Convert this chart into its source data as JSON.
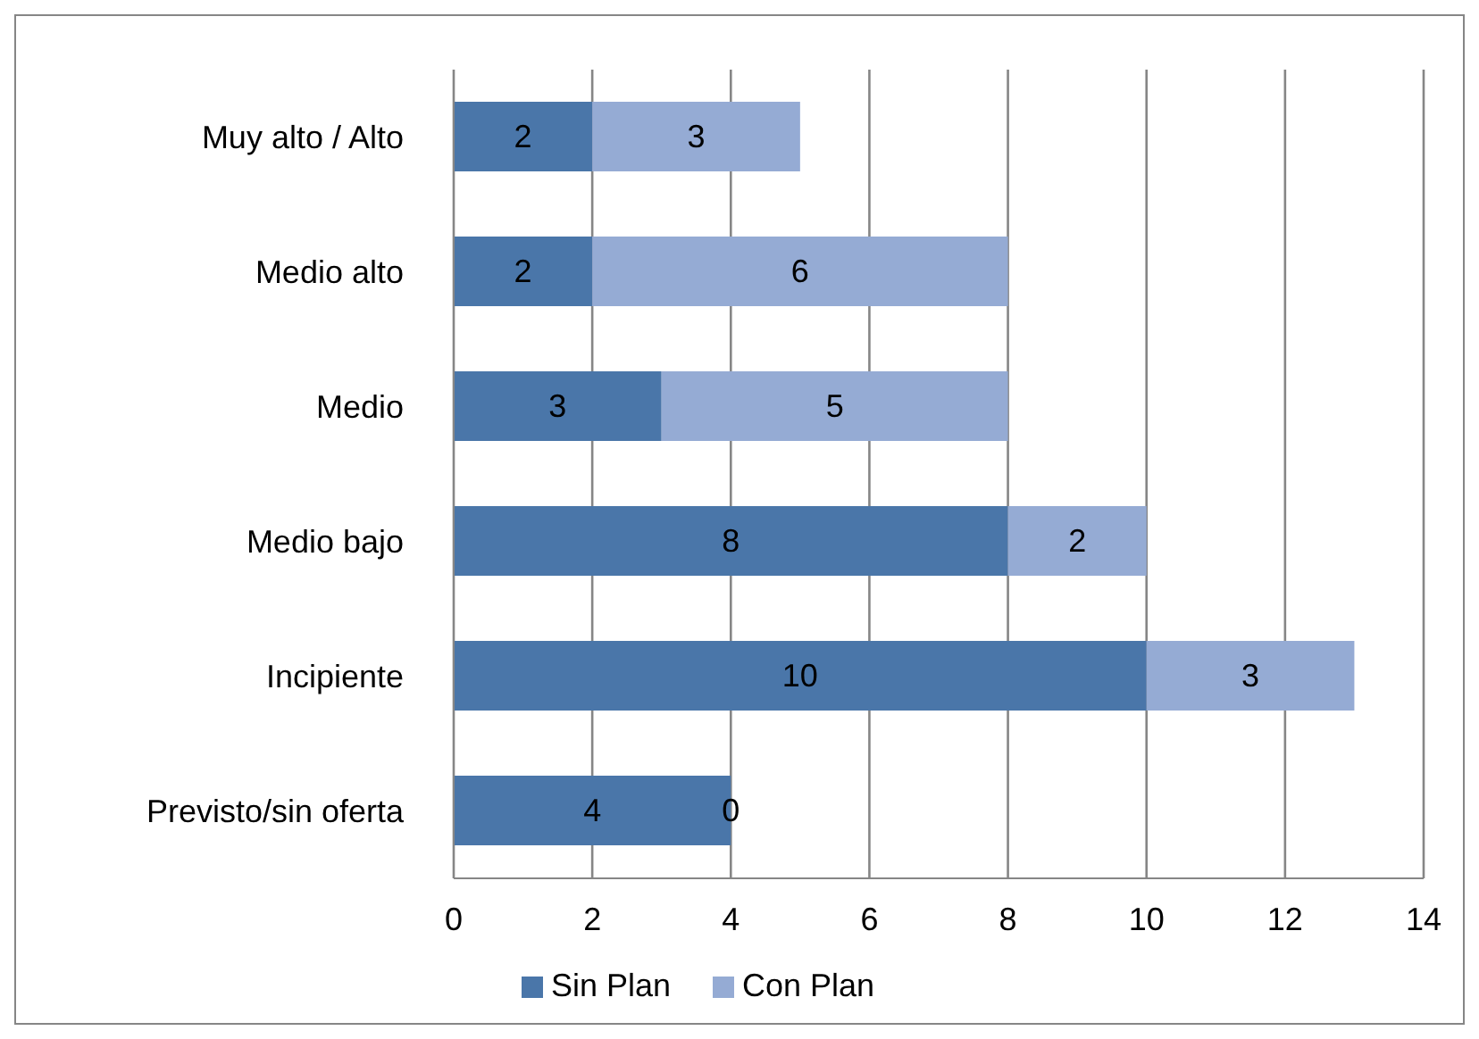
{
  "chart_data": {
    "type": "bar",
    "orientation": "horizontal",
    "stacked": true,
    "categories": [
      "Muy alto / Alto",
      "Medio alto",
      "Medio",
      "Medio bajo",
      "Incipiente",
      "Previsto/sin oferta"
    ],
    "series": [
      {
        "name": "Sin Plan",
        "color": "#4a76a9",
        "values": [
          2,
          2,
          3,
          8,
          10,
          4
        ]
      },
      {
        "name": "Con Plan",
        "color": "#95abd4",
        "values": [
          3,
          6,
          5,
          2,
          3,
          0
        ]
      }
    ],
    "xlim": [
      0,
      14
    ],
    "xticks": [
      0,
      2,
      4,
      6,
      8,
      10,
      12,
      14
    ],
    "grid": "x",
    "legend": "bottom",
    "data_labels": true
  }
}
